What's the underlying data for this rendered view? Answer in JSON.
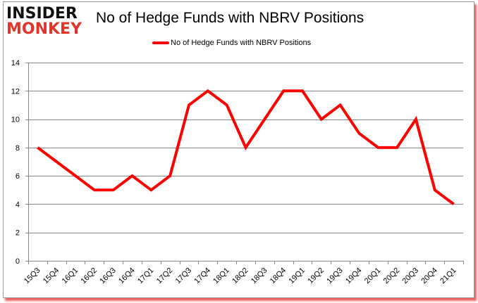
{
  "brand": {
    "line1": "INSIDER",
    "line2": "MONKEY"
  },
  "colors": {
    "series": "#ff0000",
    "grid": "#868686",
    "brand_red": "#e0352b",
    "frame_shadow": "#e62828"
  },
  "chart_data": {
    "type": "line",
    "title": "No of Hedge Funds with NBRV Positions",
    "xlabel": "",
    "ylabel": "",
    "ylim": [
      0,
      14
    ],
    "yticks": [
      0,
      2,
      4,
      6,
      8,
      10,
      12,
      14
    ],
    "grid": true,
    "legend_position": "top",
    "categories": [
      "15Q3",
      "15Q4",
      "16Q1",
      "16Q2",
      "16Q3",
      "16Q4",
      "17Q1",
      "17Q2",
      "17Q3",
      "17Q4",
      "18Q1",
      "18Q2",
      "18Q3",
      "18Q4",
      "19Q1",
      "19Q2",
      "19Q3",
      "19Q4",
      "20Q1",
      "20Q2",
      "20Q3",
      "20Q4",
      "21Q1"
    ],
    "series": [
      {
        "name": "No of Hedge Funds with NBRV Positions",
        "values": [
          8,
          7,
          6,
          5,
          5,
          6,
          5,
          6,
          11,
          12,
          11,
          8,
          10,
          12,
          12,
          10,
          11,
          9,
          8,
          8,
          10,
          5,
          4
        ]
      }
    ]
  }
}
